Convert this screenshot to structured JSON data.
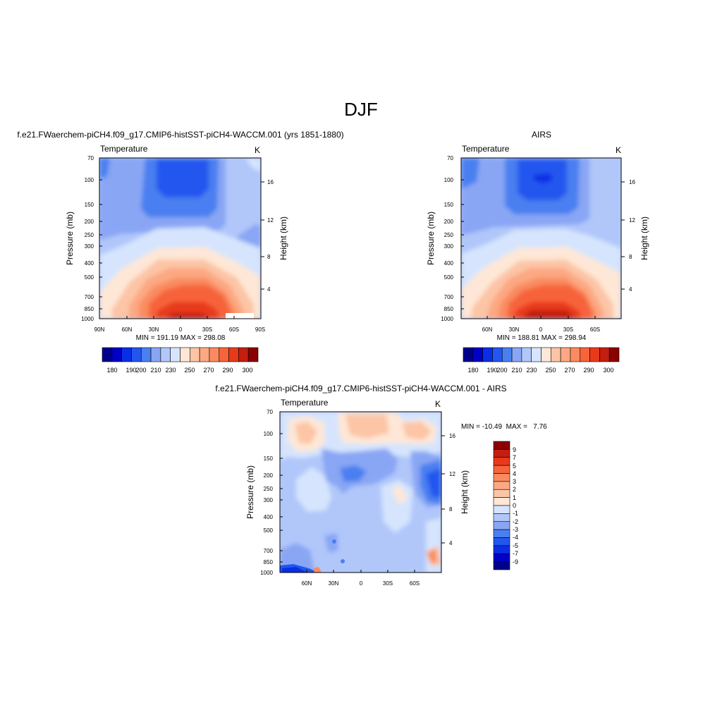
{
  "figure": {
    "main_title": "DJF"
  },
  "colors": {
    "abs_levels": [
      "#00008b",
      "#0000c8",
      "#0a2ee6",
      "#2256ee",
      "#4a7ff0",
      "#89a6f4",
      "#b1c7fa",
      "#d6e5fd",
      "#fee7d6",
      "#fcc5a6",
      "#fca882",
      "#fa8b60",
      "#f6643a",
      "#e83a1b",
      "#c31e10",
      "#8b0000"
    ],
    "diff_levels": [
      "#00008b",
      "#0000c8",
      "#0a2ee6",
      "#2256ee",
      "#4a7ff0",
      "#89a6f4",
      "#b1c7fa",
      "#d6e5fd",
      "#fee7d6",
      "#fcc5a6",
      "#fca882",
      "#fa8b60",
      "#f6643a",
      "#e83a1b",
      "#c31e10",
      "#8b0000"
    ]
  },
  "chart_data": [
    {
      "type": "heatmap",
      "title": "f.e21.FWaerchem-piCH4.f09_g17.CMIP6-histSST-piCH4-WACCM.001 (yrs 1851-1880)",
      "left_label": "Temperature",
      "right_label": "K",
      "ylabel": "Pressure (mb)",
      "y2label": "Height (km)",
      "x_ticks": [
        "90N",
        "60N",
        "30N",
        "0",
        "30S",
        "60S",
        "90S"
      ],
      "y_ticks": [
        "70",
        "100",
        "150",
        "200",
        "250",
        "300",
        "400",
        "500",
        "700",
        "850",
        "1000"
      ],
      "y2_ticks": [
        "16",
        "12",
        "8",
        "4"
      ],
      "stats": "MIN = 191.19  MAX = 298.08",
      "min": 191.19,
      "max": 298.08,
      "colorbar_labels": [
        "180",
        "190",
        "200",
        "210",
        "230",
        "250",
        "270",
        "290",
        "300"
      ]
    },
    {
      "type": "heatmap",
      "title": "AIRS",
      "left_label": "Temperature",
      "right_label": "K",
      "ylabel": "Pressure (mb)",
      "y2label": "Height (km)",
      "x_ticks": [
        "60N",
        "30N",
        "0",
        "30S",
        "60S"
      ],
      "y_ticks": [
        "70",
        "100",
        "150",
        "200",
        "250",
        "300",
        "400",
        "500",
        "700",
        "850",
        "1000"
      ],
      "y2_ticks": [
        "16",
        "12",
        "8",
        "4"
      ],
      "stats": "MIN = 188.81  MAX = 298.94",
      "min": 188.81,
      "max": 298.94,
      "colorbar_labels": [
        "180",
        "190",
        "200",
        "210",
        "230",
        "250",
        "270",
        "290",
        "300"
      ]
    },
    {
      "type": "heatmap",
      "title": "f.e21.FWaerchem-piCH4.f09_g17.CMIP6-histSST-piCH4-WACCM.001 - AIRS",
      "left_label": "Temperature",
      "right_label": "K",
      "ylabel": "Pressure (mb)",
      "y2label": "Height (km)",
      "x_ticks": [
        "60N",
        "30N",
        "0",
        "30S",
        "60S"
      ],
      "y_ticks": [
        "70",
        "100",
        "150",
        "200",
        "250",
        "300",
        "400",
        "500",
        "700",
        "850",
        "1000"
      ],
      "y2_ticks": [
        "16",
        "12",
        "8",
        "4"
      ],
      "stats": "MIN = -10.49  MAX =   7.76",
      "min": -10.49,
      "max": 7.76,
      "colorbar_labels": [
        "9",
        "7",
        "5",
        "4",
        "3",
        "2",
        "1",
        "0",
        "-1",
        "-2",
        "-3",
        "-4",
        "-5",
        "-7",
        "-9"
      ]
    }
  ]
}
